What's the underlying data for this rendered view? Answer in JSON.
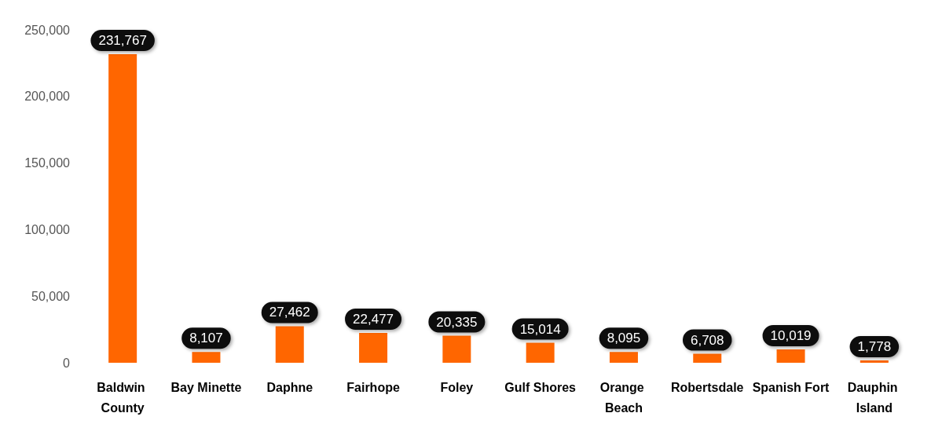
{
  "chart_data": {
    "type": "bar",
    "categories": [
      "Baldwin County",
      "Bay Minette",
      "Daphne",
      "Fairhope",
      "Foley",
      "Gulf Shores",
      "Orange Beach",
      "Robertsdale",
      "Spanish Fort",
      "Dauphin Island"
    ],
    "values": [
      231767,
      8107,
      27462,
      22477,
      20335,
      15014,
      8095,
      6708,
      10019,
      1778
    ],
    "value_labels": [
      "231,767",
      "8,107",
      "27,462",
      "22,477",
      "20,335",
      "15,014",
      "8,095",
      "6,708",
      "10,019",
      "1,778"
    ],
    "color": "#ff6600",
    "ylim": [
      0,
      250000
    ],
    "yticks": [
      0,
      {
        "value": 50000,
        "label": "50,000"
      },
      {
        "value": 100000,
        "label": "100,000"
      },
      {
        "value": 150000,
        "label": "150,000"
      },
      {
        "value": 200000,
        "label": "200,000"
      },
      {
        "value": 250000,
        "label": "250,000"
      }
    ],
    "grid": false
  }
}
